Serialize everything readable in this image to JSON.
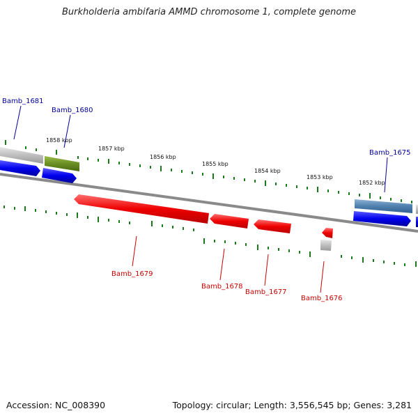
{
  "title": "Burkholderia ambifaria AMMD chromosome 1, complete genome",
  "footer": {
    "accession": "Accession: NC_008390",
    "summary": "Topology: circular; Length: 3,556,545 bp; Genes: 3,281"
  },
  "colors": {
    "forward_gene": "#0000dd",
    "reverse_gene": "#ee0000",
    "backbone": "#8a8a8a",
    "tick": "#1a7a1a",
    "label_forward": "#000099",
    "label_reverse": "#cc0000",
    "gray_feature": "#b8b8b8",
    "olive_feature": "#6b8e23",
    "steel_feature": "#4f7fae"
  },
  "scale_labels": [
    "1858 kbp",
    "1857 kbp",
    "1856 kbp",
    "1855 kbp",
    "1854 kbp",
    "1853 kbp",
    "1852 kbp"
  ],
  "gene_labels": [
    {
      "name": "Bamb_1681",
      "strand": "forward"
    },
    {
      "name": "Bamb_1680",
      "strand": "forward"
    },
    {
      "name": "Bamb_1675",
      "strand": "forward"
    },
    {
      "name": "Bamb_1679",
      "strand": "reverse"
    },
    {
      "name": "Bamb_1678",
      "strand": "reverse"
    },
    {
      "name": "Bamb_1677",
      "strand": "reverse"
    },
    {
      "name": "Bamb_1676",
      "strand": "reverse"
    }
  ]
}
